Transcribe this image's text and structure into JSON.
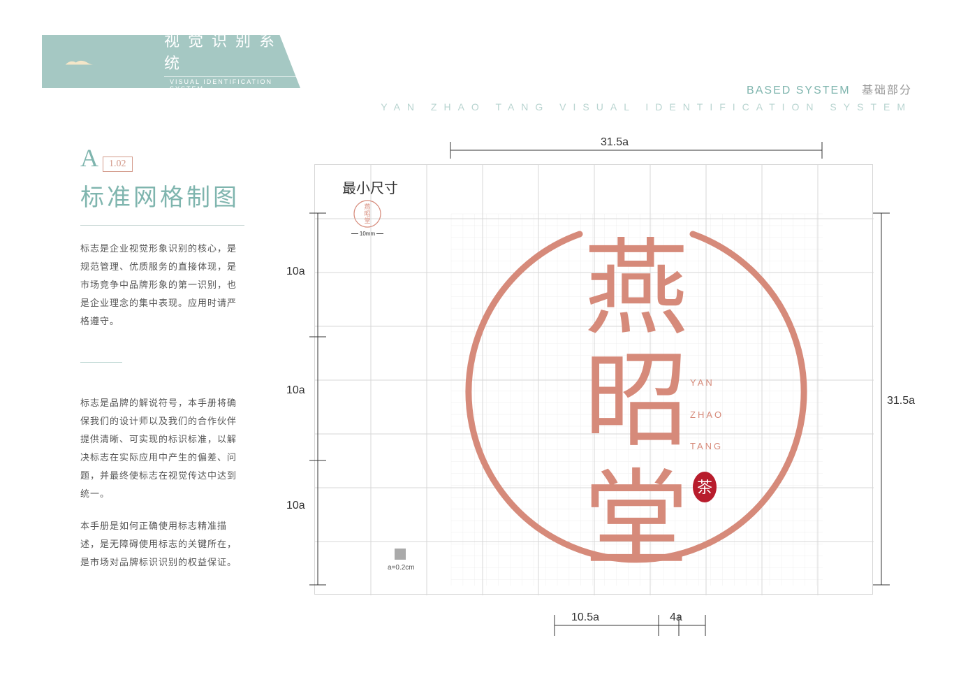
{
  "header": {
    "title_cn": "视觉识别系统",
    "title_en": "VISUAL IDENTIFICATION SYSTEM"
  },
  "topright": {
    "en": "BASED SYSTEM",
    "cn": "基础部分"
  },
  "strip": "YAN ZHAO TANG VISUAL IDENTIFICATION SYSTEM",
  "section": {
    "letter": "A",
    "code": "1.02",
    "title": "标准网格制图"
  },
  "para1": "标志是企业视觉形象识别的核心，是规范管理、优质服务的直接体现，是市场竞争中品牌形象的第一识别，也是企业理念的集中表现。应用时请严格遵守。",
  "para2": "标志是品牌的解说符号，本手册将确保我们的设计师以及我们的合作伙伴提供清晰、可实现的标识标准，以解决标志在实际应用中产生的偏差、问题，并最终使标志在视觉传达中达到统一。",
  "para3": "本手册是如何正确使用标志精准描述，是无障碍使用标志的关键所在，是市场对品牌标识识别的权益保证。",
  "diagram": {
    "min_size_label": "最小尺寸",
    "mini_dim": "10mm",
    "dim_top": "31.5a",
    "dim_right": "31.5a",
    "dim_left": "10a",
    "dim_bot1": "10.5a",
    "dim_bot2": "4a",
    "unit_label": "a=0.2cm",
    "pinyin": [
      "YAN",
      "ZHAO",
      "TANG"
    ],
    "seal_char": "茶",
    "colors": {
      "logo": "#d68a7a",
      "teal": "#a5c8c3",
      "teal_text": "#7fb5ae",
      "seal_bg": "#b81c2c",
      "grid_coarse": "#d7d7d7",
      "grid_fine": "#efefef"
    }
  }
}
